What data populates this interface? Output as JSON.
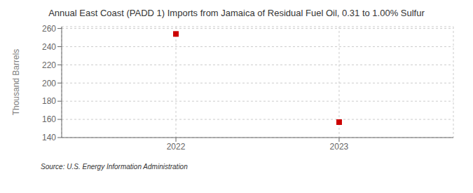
{
  "chart_data": {
    "type": "scatter",
    "title": "Annual East Coast (PADD 1) Imports from Jamaica of Residual Fuel Oil, 0.31 to 1.00% Sulfur",
    "y_label": "Thousand Barrels",
    "annotation": "Source: U.S. Energy Information Administration",
    "x": [
      2022,
      2023
    ],
    "values": [
      254,
      157
    ],
    "color": "#cc0000",
    "marker": "square",
    "xlim": [
      2021.3,
      2023.7
    ],
    "ylim": [
      140,
      262
    ],
    "xticks": [
      2022,
      2023
    ],
    "yticks": [
      140,
      160,
      180,
      200,
      220,
      240,
      260
    ],
    "grid": true
  }
}
